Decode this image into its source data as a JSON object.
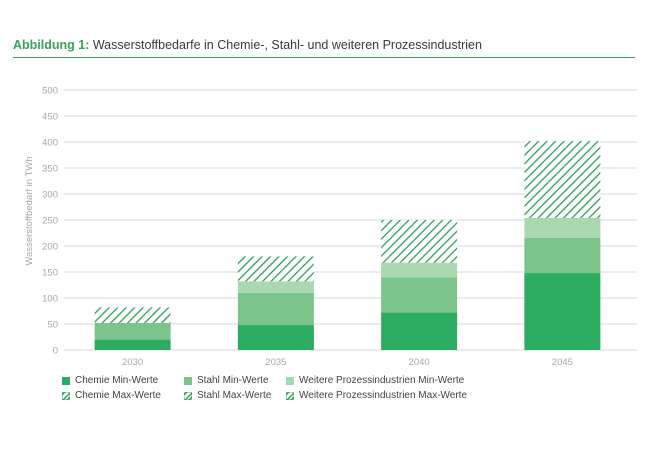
{
  "caption": {
    "lead": "Abbildung 1:",
    "text": " Wasserstoffbedarfe in Chemie-, Stahl- und weiteren Prozessindustrien"
  },
  "colors": {
    "accent": "#3aa15a",
    "chemie": "#2eab62",
    "stahl": "#7cc48c",
    "weitere": "#a9d8b1",
    "hatch": "#2e9e58",
    "grid": "#d9d9d9",
    "axis_text": "#a7a7a7"
  },
  "chart_data": {
    "type": "bar",
    "stacked": true,
    "title": "Wasserstoffbedarfe in Chemie-, Stahl- und weiteren Prozessindustrien",
    "ylabel": "Wasserstoffbedarf in TWh",
    "xlabel": "",
    "ylim": [
      0,
      500
    ],
    "yticks": [
      0,
      50,
      100,
      150,
      200,
      250,
      300,
      350,
      400,
      450,
      500
    ],
    "grid": true,
    "legend_position": "bottom",
    "categories": [
      "2030",
      "2035",
      "2040",
      "2045"
    ],
    "series": [
      {
        "name": "Chemie Min-Werte",
        "values": [
          20,
          48,
          72,
          148
        ],
        "style": "solid",
        "color": "#2eab62"
      },
      {
        "name": "Stahl Min-Werte",
        "values": [
          32,
          62,
          68,
          68
        ],
        "style": "solid",
        "color": "#7cc48c"
      },
      {
        "name": "Weitere Prozessindustrien Min-Werte",
        "values": [
          0,
          22,
          28,
          38
        ],
        "style": "solid",
        "color": "#a9d8b1"
      },
      {
        "name": "Chemie Max-Werte",
        "values": [
          0,
          0,
          0,
          0
        ],
        "style": "hatch",
        "color": "#2e9e58"
      },
      {
        "name": "Stahl Max-Werte",
        "values": [
          27,
          48,
          73,
          135
        ],
        "style": "hatch",
        "color": "#2e9e58"
      },
      {
        "name": "Weitere Prozessindustrien Max-Werte",
        "values": [
          3,
          0,
          9,
          13
        ],
        "style": "hatch",
        "color": "#2e9e58"
      }
    ]
  }
}
